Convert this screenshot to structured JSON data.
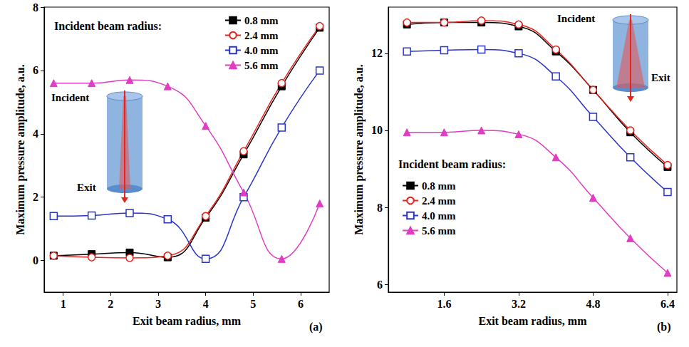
{
  "chart_data": [
    {
      "type": "line",
      "panel_label": "(a)",
      "legend_title": "Incident beam radius:",
      "annotations": [
        "Incident",
        "Exit"
      ],
      "x_label": "Exit beam radius, mm",
      "y_label": "Maximum pressure amplitude, a.u.",
      "x": [
        0.8,
        1.6,
        2.4,
        3.2,
        4.0,
        4.8,
        5.6,
        6.4
      ],
      "series": [
        {
          "name": "0.8 mm",
          "color": "#000000",
          "marker": "filled-square",
          "values": [
            0.15,
            0.2,
            0.25,
            0.1,
            1.35,
            3.35,
            5.5,
            7.35
          ]
        },
        {
          "name": "2.4 mm",
          "color": "#e8221d",
          "marker": "open-circle",
          "values": [
            0.15,
            0.1,
            0.08,
            0.15,
            1.4,
            3.45,
            5.6,
            7.4
          ]
        },
        {
          "name": "4.0 mm",
          "color": "#2a35c8",
          "marker": "open-square",
          "values": [
            1.4,
            1.42,
            1.5,
            1.3,
            0.05,
            2.0,
            4.2,
            6.0
          ]
        },
        {
          "name": "5.6 mm",
          "color": "#e03cc4",
          "marker": "filled-triangle",
          "values": [
            5.6,
            5.6,
            5.7,
            5.5,
            4.25,
            2.15,
            0.05,
            1.8
          ]
        }
      ],
      "xlim": [
        0.6,
        6.6
      ],
      "xticks": [
        1,
        2,
        3,
        4,
        5,
        6
      ],
      "ylim": [
        -1,
        8
      ],
      "yticks": [
        0,
        2,
        4,
        6,
        8
      ],
      "grid": false,
      "legend": "upper right"
    },
    {
      "type": "line",
      "panel_label": "(b)",
      "legend_title": "Incident beam radius:",
      "annotations": [
        "Incident",
        "Exit"
      ],
      "x_label": "Exit beam radius, mm",
      "y_label": "Maximum pressure amplitude, a.u.",
      "x": [
        0.8,
        1.6,
        2.4,
        3.2,
        4.0,
        4.8,
        5.6,
        6.4
      ],
      "series": [
        {
          "name": "0.8 mm",
          "color": "#000000",
          "marker": "filled-square",
          "values": [
            12.75,
            12.8,
            12.8,
            12.7,
            12.05,
            11.05,
            9.95,
            9.05
          ]
        },
        {
          "name": "2.4 mm",
          "color": "#e8221d",
          "marker": "open-circle",
          "values": [
            12.8,
            12.8,
            12.85,
            12.75,
            12.1,
            11.05,
            10.0,
            9.1
          ]
        },
        {
          "name": "4.0 mm",
          "color": "#2a35c8",
          "marker": "open-square",
          "values": [
            12.05,
            12.08,
            12.1,
            12.0,
            11.4,
            10.35,
            9.3,
            8.4
          ]
        },
        {
          "name": "5.6 mm",
          "color": "#e03cc4",
          "marker": "filled-triangle",
          "values": [
            9.95,
            9.95,
            10.0,
            9.9,
            9.3,
            8.25,
            7.2,
            6.3
          ]
        }
      ],
      "xlim": [
        0.4,
        6.6
      ],
      "xticks": [
        1.6,
        3.2,
        4.8,
        6.4
      ],
      "ylim": [
        5.8,
        13.2
      ],
      "yticks": [
        6,
        8,
        10,
        12
      ],
      "grid": false,
      "legend": "lower left"
    }
  ]
}
